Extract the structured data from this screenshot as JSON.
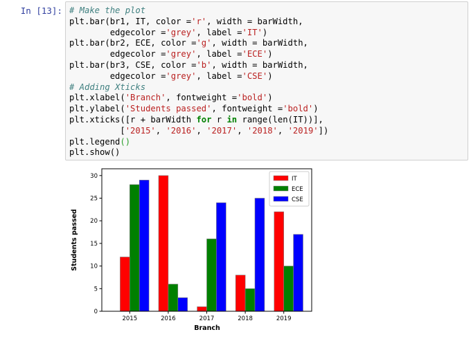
{
  "cell": {
    "prompt": "In [13]:",
    "code": {
      "l1": "# Make the plot",
      "l2a": "plt.bar(br1, IT, color =",
      "l2b": "'r'",
      "l2c": ", width = barWidth,",
      "l3a": "        edgecolor =",
      "l3b": "'grey'",
      "l3c": ", label =",
      "l3d": "'IT'",
      "l3e": ")",
      "l4a": "plt.bar(br2, ECE, color =",
      "l4b": "'g'",
      "l4c": ", width = barWidth,",
      "l5a": "        edgecolor =",
      "l5b": "'grey'",
      "l5c": ", label =",
      "l5d": "'ECE'",
      "l5e": ")",
      "l6a": "plt.bar(br3, CSE, color =",
      "l6b": "'b'",
      "l6c": ", width = barWidth,",
      "l7a": "        edgecolor =",
      "l7b": "'grey'",
      "l7c": ", label =",
      "l7d": "'CSE'",
      "l7e": ")",
      "l8": "# Adding Xticks",
      "l9a": "plt.xlabel(",
      "l9b": "'Branch'",
      "l9c": ", fontweight =",
      "l9d": "'bold'",
      "l9e": ")",
      "l10a": "plt.ylabel(",
      "l10b": "'Students passed'",
      "l10c": ", fontweight =",
      "l10d": "'bold'",
      "l10e": ")",
      "l11a": "plt.xticks([r + barWidth ",
      "l11b": "for",
      "l11c": " r ",
      "l11d": "in",
      "l11e": " range(len(IT))],",
      "l12a": "          [",
      "l12b": "'2015'",
      "l12c": ", ",
      "l12d": "'2016'",
      "l12e": ", ",
      "l12f": "'2017'",
      "l12g": ", ",
      "l12h": "'2018'",
      "l12i": ", ",
      "l12j": "'2019'",
      "l12k": "])",
      "l13a": "plt.legend",
      "l13b": "()",
      "l14": "plt.show()"
    }
  },
  "chart_data": {
    "type": "bar",
    "categories": [
      "2015",
      "2016",
      "2017",
      "2018",
      "2019"
    ],
    "series": [
      {
        "name": "IT",
        "color": "#ff0000",
        "values": [
          12,
          30,
          1,
          8,
          22
        ]
      },
      {
        "name": "ECE",
        "color": "#008000",
        "values": [
          28,
          6,
          16,
          5,
          10
        ]
      },
      {
        "name": "CSE",
        "color": "#0000ff",
        "values": [
          29,
          3,
          24,
          25,
          17
        ]
      }
    ],
    "xlabel": "Branch",
    "ylabel": "Students passed",
    "ylim": [
      0,
      31.5
    ],
    "yticks": [
      "0",
      "5",
      "10",
      "15",
      "20",
      "25",
      "30"
    ],
    "edgecolor": "#808080",
    "grid": false,
    "legend_position": "top-right"
  }
}
